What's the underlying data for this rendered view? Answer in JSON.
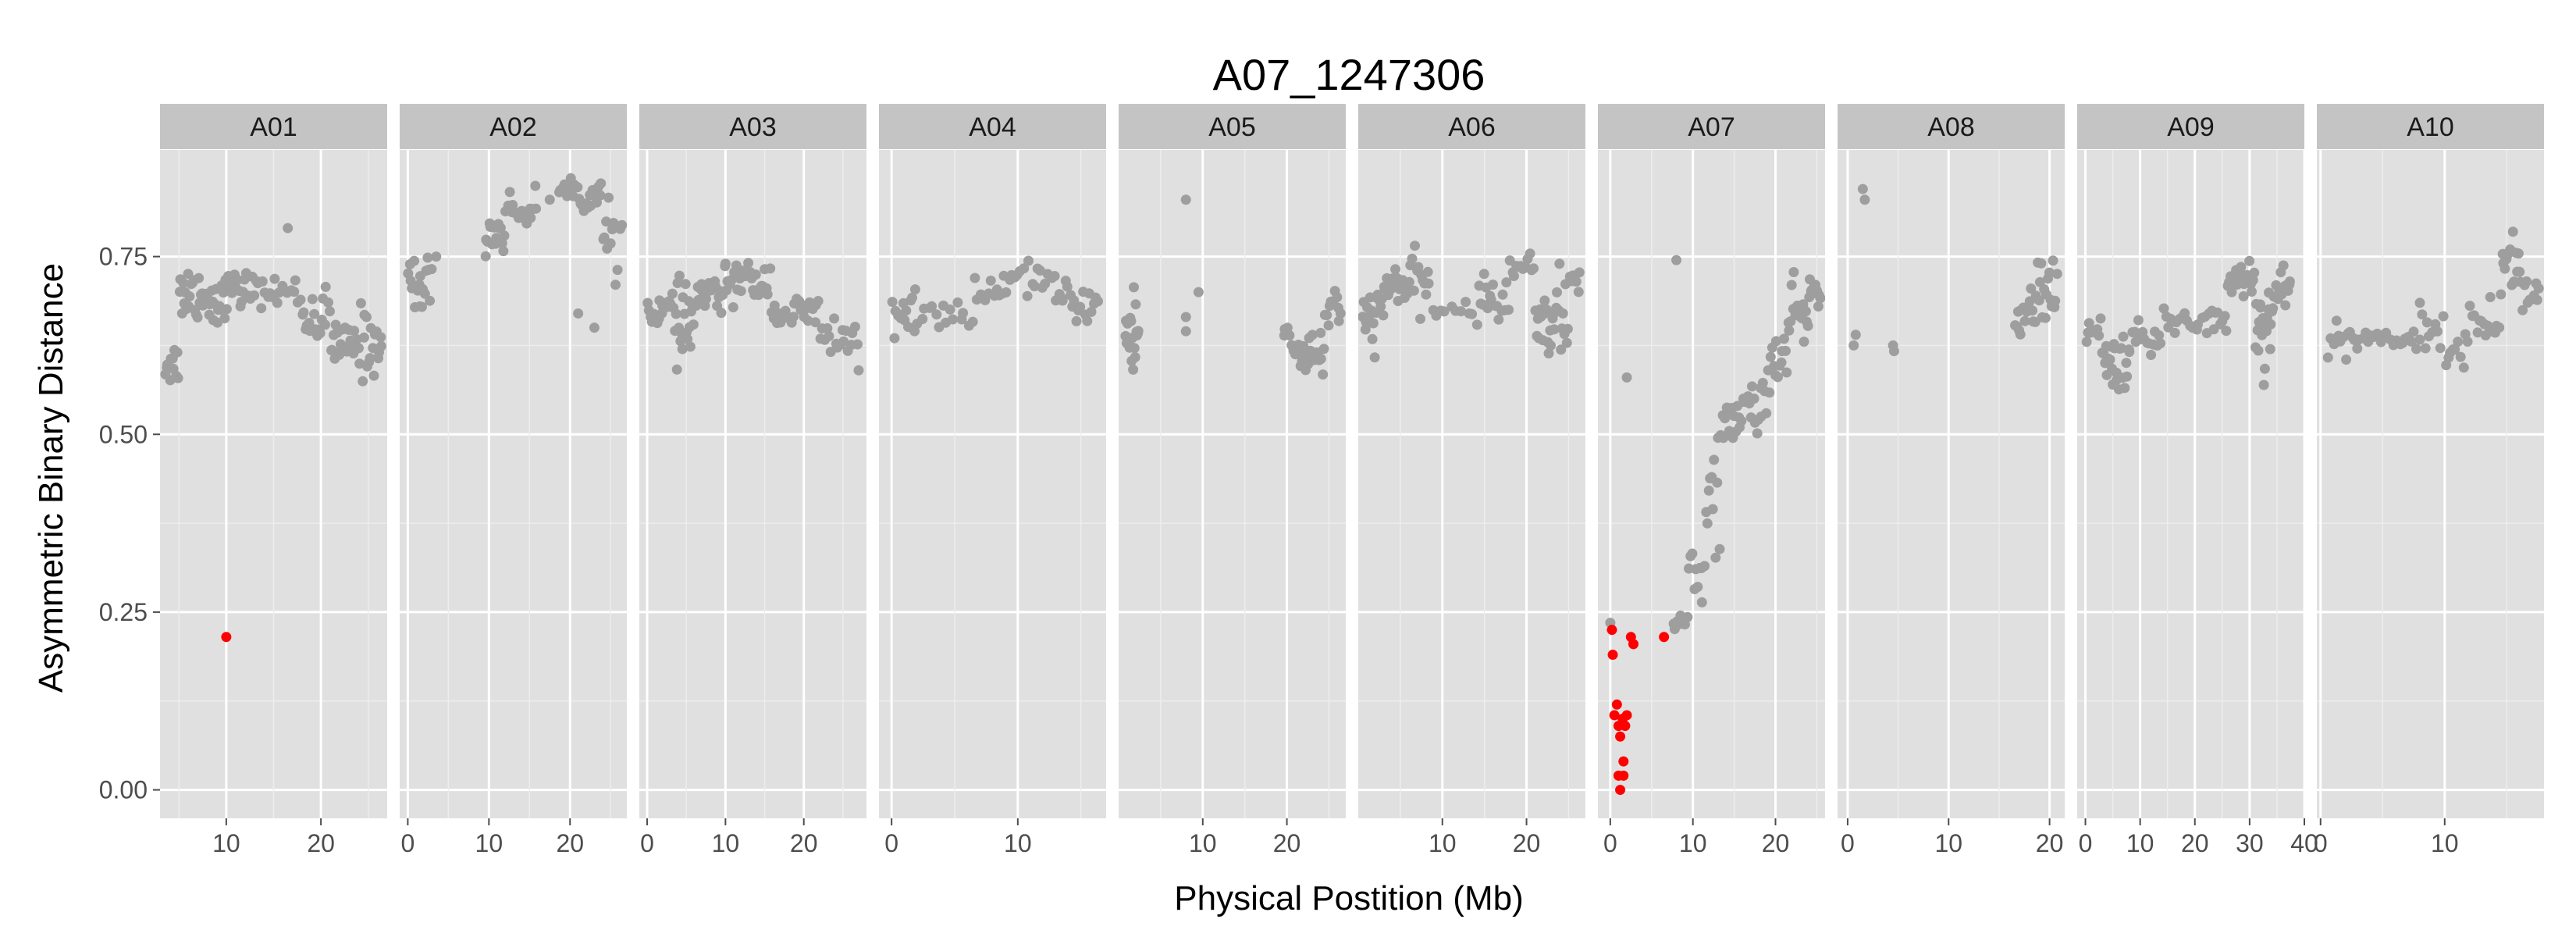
{
  "chart_data": {
    "type": "scatter",
    "title": "A07_1247306",
    "xlabel": "Physical Postition (Mb)",
    "ylabel": "Asymmetric Binary Distance",
    "ylim": [
      -0.04,
      0.9
    ],
    "yticks": [
      0.0,
      0.25,
      0.5,
      0.75
    ],
    "ytick_labels": [
      "0.00",
      "0.25",
      "0.50",
      "0.75"
    ],
    "grid": true,
    "colors": {
      "background": "#ebebeb",
      "panel": "#e0e0e0",
      "strip": "#c4c4c4",
      "grid": "#ffffff",
      "point": "#9e9e9e",
      "highlight": "#ff0000"
    },
    "panels": [
      {
        "name": "A01",
        "xlim": [
          3,
          27
        ],
        "xticks": [
          10,
          20
        ],
        "xtick_labels": [
          "10",
          "20"
        ],
        "segments": [
          {
            "start": 3.5,
            "end": 5.0,
            "base": 0.6,
            "jitter": 0.015,
            "n": 12
          },
          {
            "start": 5.0,
            "end": 7.5,
            "base": 0.7,
            "jitter": 0.02,
            "n": 20
          },
          {
            "start": 7.5,
            "end": 10.0,
            "base": 0.69,
            "jitter": 0.018,
            "n": 20
          },
          {
            "start": 10.0,
            "end": 13.0,
            "base": 0.705,
            "jitter": 0.012,
            "n": 18
          },
          {
            "start": 13.0,
            "end": 18.0,
            "base": 0.7,
            "jitter": 0.01,
            "n": 20
          },
          {
            "start": 18.0,
            "end": 21.0,
            "base": 0.665,
            "jitter": 0.02,
            "n": 18
          },
          {
            "start": 21.0,
            "end": 23.5,
            "base": 0.625,
            "jitter": 0.015,
            "n": 18
          },
          {
            "start": 23.5,
            "end": 26.5,
            "base": 0.63,
            "jitter": 0.025,
            "n": 22
          }
        ],
        "points": [
          {
            "x": 16.5,
            "y": 0.79
          },
          {
            "x": 11.5,
            "y": 0.68
          }
        ],
        "highlight": [
          {
            "x": 10.0,
            "y": 0.215
          }
        ]
      },
      {
        "name": "A02",
        "xlim": [
          -1,
          27
        ],
        "xticks": [
          0,
          10,
          20
        ],
        "xtick_labels": [
          "0",
          "10",
          "20"
        ],
        "segments": [
          {
            "start": 0.0,
            "end": 3.0,
            "base": 0.71,
            "jitter": 0.02,
            "n": 18
          },
          {
            "start": 9.5,
            "end": 12.0,
            "base": 0.785,
            "jitter": 0.015,
            "n": 16
          },
          {
            "start": 12.0,
            "end": 16.0,
            "base": 0.815,
            "jitter": 0.012,
            "n": 18
          },
          {
            "start": 18.5,
            "end": 21.0,
            "base": 0.845,
            "jitter": 0.008,
            "n": 10
          },
          {
            "start": 21.0,
            "end": 24.0,
            "base": 0.835,
            "jitter": 0.012,
            "n": 14
          },
          {
            "start": 24.0,
            "end": 26.5,
            "base": 0.78,
            "jitter": 0.02,
            "n": 14
          }
        ],
        "points": [
          {
            "x": 3.5,
            "y": 0.75
          },
          {
            "x": 1.5,
            "y": 0.68
          },
          {
            "x": 21.0,
            "y": 0.67
          },
          {
            "x": 23.0,
            "y": 0.65
          },
          {
            "x": 17.5,
            "y": 0.83
          }
        ],
        "highlight": []
      },
      {
        "name": "A03",
        "xlim": [
          -1,
          28
        ],
        "xticks": [
          0,
          10,
          20
        ],
        "xtick_labels": [
          "0",
          "10",
          "20"
        ],
        "segments": [
          {
            "start": 0.0,
            "end": 3.5,
            "base": 0.675,
            "jitter": 0.012,
            "n": 18
          },
          {
            "start": 3.5,
            "end": 6.0,
            "base": 0.655,
            "jitter": 0.025,
            "n": 20
          },
          {
            "start": 6.0,
            "end": 10.0,
            "base": 0.695,
            "jitter": 0.015,
            "n": 22
          },
          {
            "start": 10.0,
            "end": 16.0,
            "base": 0.715,
            "jitter": 0.015,
            "n": 28
          },
          {
            "start": 16.0,
            "end": 22.0,
            "base": 0.67,
            "jitter": 0.012,
            "n": 26
          },
          {
            "start": 22.0,
            "end": 27.0,
            "base": 0.635,
            "jitter": 0.018,
            "n": 18
          }
        ],
        "points": [
          {
            "x": 10.0,
            "y": 0.74
          },
          {
            "x": 4.5,
            "y": 0.62
          },
          {
            "x": 27.0,
            "y": 0.59
          }
        ],
        "highlight": []
      },
      {
        "name": "A04",
        "xlim": [
          -1,
          17
        ],
        "xticks": [
          0,
          10
        ],
        "xtick_labels": [
          "0",
          "10"
        ],
        "segments": [
          {
            "start": 0.0,
            "end": 2.0,
            "base": 0.66,
            "jitter": 0.02,
            "n": 14
          },
          {
            "start": 2.0,
            "end": 6.5,
            "base": 0.67,
            "jitter": 0.008,
            "n": 16
          },
          {
            "start": 6.5,
            "end": 9.5,
            "base": 0.695,
            "jitter": 0.012,
            "n": 14
          },
          {
            "start": 9.5,
            "end": 13.0,
            "base": 0.72,
            "jitter": 0.01,
            "n": 16
          },
          {
            "start": 13.0,
            "end": 16.5,
            "base": 0.685,
            "jitter": 0.014,
            "n": 20
          }
        ],
        "points": [],
        "highlight": []
      },
      {
        "name": "A05",
        "xlim": [
          0,
          27
        ],
        "xticks": [
          10,
          20
        ],
        "xtick_labels": [
          "10",
          "20"
        ],
        "segments": [
          {
            "start": 0.8,
            "end": 2.4,
            "base": 0.64,
            "jitter": 0.035,
            "n": 20
          },
          {
            "start": 19.5,
            "end": 21.0,
            "base": 0.64,
            "jitter": 0.02,
            "n": 6
          },
          {
            "start": 21.0,
            "end": 24.5,
            "base": 0.615,
            "jitter": 0.02,
            "n": 24
          },
          {
            "start": 24.5,
            "end": 26.5,
            "base": 0.67,
            "jitter": 0.015,
            "n": 12
          }
        ],
        "points": [
          {
            "x": 8.0,
            "y": 0.83
          },
          {
            "x": 9.5,
            "y": 0.7
          },
          {
            "x": 8.0,
            "y": 0.665
          },
          {
            "x": 8.0,
            "y": 0.645
          }
        ],
        "highlight": []
      },
      {
        "name": "A06",
        "xlim": [
          0,
          27
        ],
        "xticks": [
          10,
          20
        ],
        "xtick_labels": [
          "10",
          "20"
        ],
        "segments": [
          {
            "start": 0.5,
            "end": 3.0,
            "base": 0.665,
            "jitter": 0.02,
            "n": 18
          },
          {
            "start": 3.0,
            "end": 6.0,
            "base": 0.71,
            "jitter": 0.015,
            "n": 20
          },
          {
            "start": 6.0,
            "end": 8.5,
            "base": 0.71,
            "jitter": 0.018,
            "n": 14
          },
          {
            "start": 8.5,
            "end": 14.0,
            "base": 0.675,
            "jitter": 0.008,
            "n": 10
          },
          {
            "start": 14.0,
            "end": 18.0,
            "base": 0.69,
            "jitter": 0.015,
            "n": 18
          },
          {
            "start": 18.0,
            "end": 21.0,
            "base": 0.735,
            "jitter": 0.008,
            "n": 12
          },
          {
            "start": 21.0,
            "end": 25.0,
            "base": 0.665,
            "jitter": 0.03,
            "n": 28
          },
          {
            "start": 25.0,
            "end": 26.5,
            "base": 0.715,
            "jitter": 0.01,
            "n": 6
          }
        ],
        "points": [],
        "highlight": []
      },
      {
        "name": "A07",
        "xlim": [
          -1.5,
          26
        ],
        "xticks": [
          0,
          10,
          20
        ],
        "xtick_labels": [
          "0",
          "10",
          "20"
        ],
        "segments": [
          {
            "start": 7.5,
            "end": 9.5,
            "base": 0.235,
            "jitter": 0.006,
            "n": 8
          },
          {
            "start": 9.5,
            "end": 11.5,
            "base": 0.3,
            "jitter": 0.02,
            "n": 10
          },
          {
            "start": 11.5,
            "end": 13.5,
            "base": 0.43,
            "jitter": 0.05,
            "n": 12
          },
          {
            "start": 13.5,
            "end": 16.0,
            "base": 0.515,
            "jitter": 0.015,
            "n": 14
          },
          {
            "start": 16.0,
            "end": 19.0,
            "base": 0.545,
            "jitter": 0.018,
            "n": 16
          },
          {
            "start": 19.0,
            "end": 21.5,
            "base": 0.6,
            "jitter": 0.03,
            "n": 14
          },
          {
            "start": 21.5,
            "end": 24.0,
            "base": 0.665,
            "jitter": 0.02,
            "n": 18
          },
          {
            "start": 24.0,
            "end": 25.5,
            "base": 0.7,
            "jitter": 0.012,
            "n": 12
          }
        ],
        "points": [
          {
            "x": 8.0,
            "y": 0.745
          },
          {
            "x": 2.0,
            "y": 0.58
          },
          {
            "x": 0.0,
            "y": 0.235
          }
        ],
        "highlight": [
          {
            "x": 0.2,
            "y": 0.225
          },
          {
            "x": 0.3,
            "y": 0.19
          },
          {
            "x": 0.8,
            "y": 0.12
          },
          {
            "x": 0.5,
            "y": 0.105
          },
          {
            "x": 1.0,
            "y": 0.09
          },
          {
            "x": 1.2,
            "y": 0.075
          },
          {
            "x": 1.5,
            "y": 0.1
          },
          {
            "x": 1.8,
            "y": 0.09
          },
          {
            "x": 2.0,
            "y": 0.105
          },
          {
            "x": 1.0,
            "y": 0.02
          },
          {
            "x": 1.6,
            "y": 0.04
          },
          {
            "x": 1.6,
            "y": 0.02
          },
          {
            "x": 1.2,
            "y": 0.0
          },
          {
            "x": 2.5,
            "y": 0.215
          },
          {
            "x": 2.8,
            "y": 0.205
          },
          {
            "x": 6.5,
            "y": 0.215
          }
        ]
      },
      {
        "name": "A08",
        "xlim": [
          -1,
          21.5
        ],
        "xticks": [
          0,
          10,
          20
        ],
        "xtick_labels": [
          "0",
          "10",
          "20"
        ],
        "segments": [
          {
            "start": 16.5,
            "end": 18.5,
            "base": 0.67,
            "jitter": 0.015,
            "n": 14
          },
          {
            "start": 18.5,
            "end": 20.8,
            "base": 0.7,
            "jitter": 0.02,
            "n": 18
          }
        ],
        "points": [
          {
            "x": 1.5,
            "y": 0.845
          },
          {
            "x": 1.7,
            "y": 0.83
          },
          {
            "x": 0.8,
            "y": 0.64
          },
          {
            "x": 0.6,
            "y": 0.625
          },
          {
            "x": 4.5,
            "y": 0.625
          },
          {
            "x": 4.6,
            "y": 0.617
          }
        ],
        "highlight": []
      },
      {
        "name": "A09",
        "xlim": [
          -1.5,
          40
        ],
        "xticks": [
          0,
          10,
          20,
          30,
          40
        ],
        "xtick_labels": [
          "0",
          "10",
          "20",
          "30",
          "40"
        ],
        "segments": [
          {
            "start": 0.0,
            "end": 3.0,
            "base": 0.64,
            "jitter": 0.015,
            "n": 10
          },
          {
            "start": 3.0,
            "end": 8.0,
            "base": 0.605,
            "jitter": 0.02,
            "n": 22
          },
          {
            "start": 8.0,
            "end": 14.0,
            "base": 0.63,
            "jitter": 0.012,
            "n": 16
          },
          {
            "start": 14.0,
            "end": 22.0,
            "base": 0.66,
            "jitter": 0.01,
            "n": 16
          },
          {
            "start": 22.0,
            "end": 26.0,
            "base": 0.66,
            "jitter": 0.015,
            "n": 10
          },
          {
            "start": 26.0,
            "end": 31.0,
            "base": 0.72,
            "jitter": 0.015,
            "n": 22
          },
          {
            "start": 31.0,
            "end": 34.0,
            "base": 0.655,
            "jitter": 0.03,
            "n": 18
          },
          {
            "start": 34.0,
            "end": 37.5,
            "base": 0.7,
            "jitter": 0.02,
            "n": 18
          }
        ],
        "points": [
          {
            "x": 5.0,
            "y": 0.57
          }
        ],
        "highlight": []
      },
      {
        "name": "A10",
        "xlim": [
          -0.3,
          18
        ],
        "xticks": [
          0,
          10
        ],
        "xtick_labels": [
          "0",
          "10"
        ],
        "segments": [
          {
            "start": 0.5,
            "end": 3.0,
            "base": 0.635,
            "jitter": 0.015,
            "n": 14
          },
          {
            "start": 3.0,
            "end": 7.0,
            "base": 0.635,
            "jitter": 0.008,
            "n": 16
          },
          {
            "start": 7.0,
            "end": 10.0,
            "base": 0.64,
            "jitter": 0.012,
            "n": 14
          },
          {
            "start": 10.0,
            "end": 12.0,
            "base": 0.62,
            "jitter": 0.01,
            "n": 10
          },
          {
            "start": 12.0,
            "end": 14.5,
            "base": 0.66,
            "jitter": 0.018,
            "n": 14
          },
          {
            "start": 14.5,
            "end": 16.2,
            "base": 0.735,
            "jitter": 0.02,
            "n": 16
          },
          {
            "start": 16.2,
            "end": 17.7,
            "base": 0.695,
            "jitter": 0.015,
            "n": 10
          }
        ],
        "points": [
          {
            "x": 15.5,
            "y": 0.785
          },
          {
            "x": 8.0,
            "y": 0.685
          }
        ],
        "highlight": []
      }
    ]
  }
}
